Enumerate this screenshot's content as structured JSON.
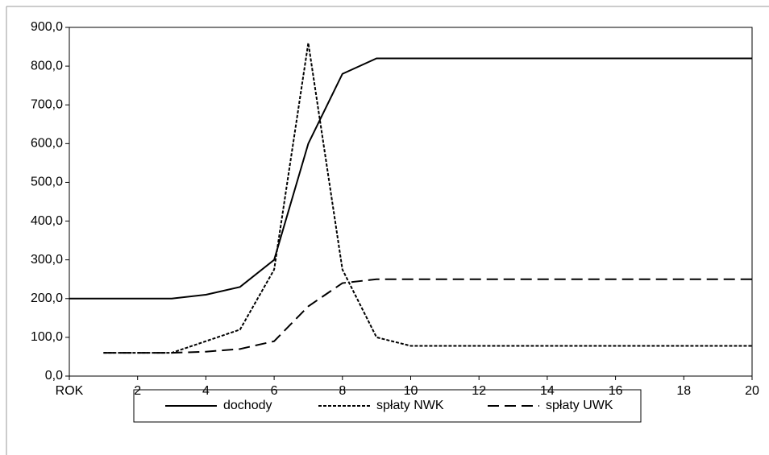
{
  "chart_data": {
    "type": "line",
    "x": [
      0,
      1,
      2,
      3,
      4,
      5,
      6,
      7,
      8,
      9,
      10,
      11,
      12,
      13,
      14,
      15,
      16,
      17,
      18,
      19,
      20
    ],
    "xlim": [
      0,
      20
    ],
    "xticks": [
      {
        "value": 0,
        "label": "ROK"
      },
      2,
      4,
      6,
      8,
      10,
      12,
      14,
      16,
      18,
      20
    ],
    "ylim": [
      0,
      900
    ],
    "yticks": [
      {
        "value": 0,
        "label": "0,0"
      },
      {
        "value": 100,
        "label": "100,0"
      },
      {
        "value": 200,
        "label": "200,0"
      },
      {
        "value": 300,
        "label": "300,0"
      },
      {
        "value": 400,
        "label": "400,0"
      },
      {
        "value": 500,
        "label": "500,0"
      },
      {
        "value": 600,
        "label": "600,0"
      },
      {
        "value": 700,
        "label": "700,0"
      },
      {
        "value": 800,
        "label": "800,0"
      },
      {
        "value": 900,
        "label": "900,0"
      }
    ],
    "series": [
      {
        "name": "dochody",
        "color": "#000000",
        "dash": "solid",
        "values": [
          200,
          200,
          200,
          200,
          210,
          230,
          300,
          600,
          780,
          820,
          820,
          820,
          820,
          820,
          820,
          820,
          820,
          820,
          820,
          820,
          820
        ]
      },
      {
        "name": "spłaty NWK",
        "color": "#000000",
        "dash": "dotted",
        "values": [
          null,
          60,
          60,
          60,
          90,
          120,
          275,
          860,
          275,
          100,
          78,
          78,
          78,
          78,
          78,
          78,
          78,
          78,
          78,
          78,
          78
        ]
      },
      {
        "name": "spłaty UWK",
        "color": "#000000",
        "dash": "dashed",
        "values": [
          null,
          60,
          60,
          60,
          63,
          70,
          90,
          180,
          240,
          250,
          250,
          250,
          250,
          250,
          250,
          250,
          250,
          250,
          250,
          250,
          250
        ]
      }
    ]
  }
}
